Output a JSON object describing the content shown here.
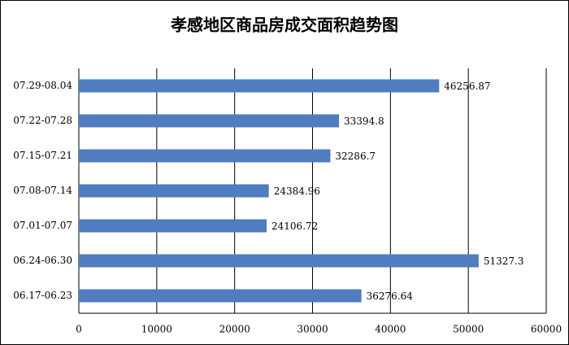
{
  "chart_data": {
    "type": "hbar",
    "title": "孝感地区商品房成交面积趋势图",
    "categories": [
      "07.29-08.04",
      "07.22-07.28",
      "07.15-07.21",
      "07.08-07.14",
      "07.01-07.07",
      "06.24-06.30",
      "06.17-06.23"
    ],
    "values": [
      46256.87,
      33394.8,
      32286.7,
      24384.96,
      24106.72,
      51327.3,
      36276.64
    ],
    "color": "#4f7dc0",
    "xlim": [
      0,
      60000
    ],
    "xticks": [
      0,
      10000,
      20000,
      30000,
      40000,
      50000,
      60000
    ],
    "grid": true
  }
}
